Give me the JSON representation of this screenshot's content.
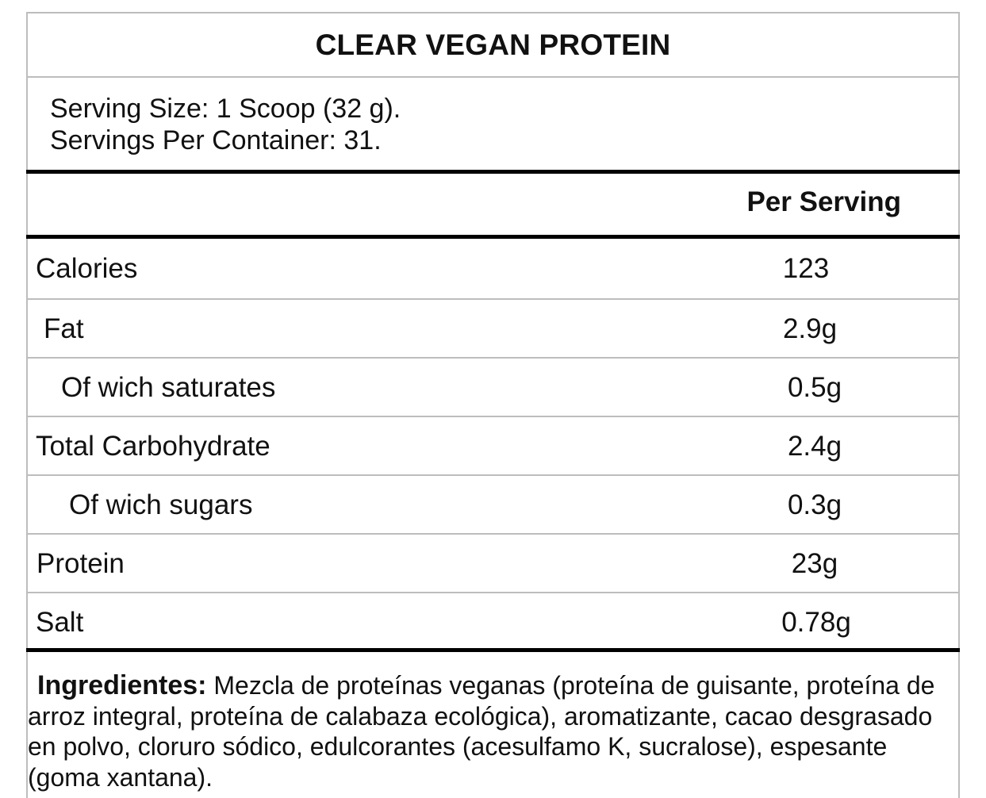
{
  "title": "CLEAR VEGAN PROTEIN",
  "serving": {
    "size": "Serving Size: 1 Scoop (32 g).",
    "per_container": "Servings Per Container: 31."
  },
  "column_header": "Per Serving",
  "rows": [
    {
      "name": "Calories",
      "value": "123"
    },
    {
      "name": "Fat",
      "value": "2.9g"
    },
    {
      "name": "Of wich saturates",
      "value": "0.5g"
    },
    {
      "name": "Total Carbohydrate",
      "value": "2.4g"
    },
    {
      "name": "Of wich sugars",
      "value": "0.3g"
    },
    {
      "name": "Protein",
      "value": "23g"
    },
    {
      "name": "Salt",
      "value": "0.78g"
    }
  ],
  "ingredients": {
    "label": "Ingredientes:",
    "text": "Mezcla de proteínas veganas (proteína de guisante, proteína de arroz integral, proteína de calabaza ecológica), aromatizante, cacao desgrasado en polvo, cloruro sódico, edulcorantes (acesulfamo K, sucralose), espesante (goma xantana)."
  }
}
